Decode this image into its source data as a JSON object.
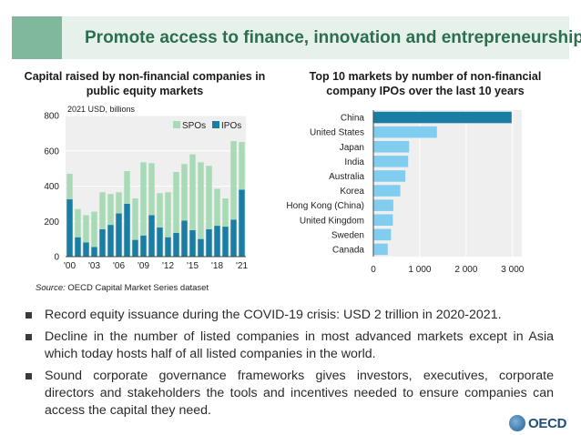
{
  "header": {
    "title": "Promote access to finance, innovation and entrepreneurship"
  },
  "chart_data": [
    {
      "type": "bar",
      "stacked": true,
      "title": "Capital raised by non-financial companies in public equity markets",
      "unit_label": "2021 USD, billions",
      "categories": [
        "2000",
        "2001",
        "2002",
        "2003",
        "2004",
        "2005",
        "2006",
        "2007",
        "2008",
        "2009",
        "2010",
        "2011",
        "2012",
        "2013",
        "2014",
        "2015",
        "2016",
        "2017",
        "2018",
        "2019",
        "2020",
        "2021"
      ],
      "tick_labels": [
        "'00",
        "'03",
        "'06",
        "'09",
        "'12",
        "'15",
        "'18",
        "'21"
      ],
      "tick_years": [
        "2000",
        "2003",
        "2006",
        "2009",
        "2012",
        "2015",
        "2018",
        "2021"
      ],
      "series": [
        {
          "name": "IPOs",
          "color": "#1a7da4",
          "values": [
            325,
            110,
            80,
            55,
            155,
            180,
            245,
            300,
            95,
            120,
            235,
            165,
            110,
            135,
            205,
            150,
            100,
            155,
            175,
            170,
            210,
            380
          ]
        },
        {
          "name": "SPOs",
          "color": "#a8dab6",
          "values": [
            145,
            160,
            155,
            200,
            210,
            175,
            120,
            185,
            235,
            415,
            295,
            195,
            255,
            345,
            320,
            430,
            435,
            360,
            210,
            160,
            445,
            270
          ]
        }
      ],
      "ylim": [
        0,
        800
      ],
      "yticks": [
        0,
        200,
        400,
        600,
        800
      ],
      "legend_position": "top-right"
    },
    {
      "type": "bar",
      "orientation": "horizontal",
      "title": "Top 10 markets by number of non-financial company IPOs over the last 10 years",
      "categories": [
        "China",
        "United States",
        "Japan",
        "India",
        "Australia",
        "Korea",
        "Hong Kong (China)",
        "United Kingdom",
        "Sweden",
        "Canada"
      ],
      "values": [
        2980,
        1370,
        770,
        750,
        690,
        580,
        430,
        420,
        380,
        310
      ],
      "highlight": "China",
      "colors": {
        "highlight": "#1a7da4",
        "default": "#80cdf0"
      },
      "xlim": [
        0,
        3200
      ],
      "xticks": [
        0,
        1000,
        2000,
        3000
      ],
      "xtick_labels": [
        "0",
        "1 000",
        "2 000",
        "3 000"
      ]
    }
  ],
  "source": {
    "label": "Source:",
    "text": " OECD Capital Market Series dataset"
  },
  "bullets": [
    "Record equity issuance during the COVID-19 crisis: USD 2 trillion in 2020-2021.",
    "Decline in the number of listed companies in most advanced markets except in Asia which today hosts half of all listed companies in the world.",
    "Sound corporate governance frameworks gives investors, executives, corporate directors and stakeholders the tools and incentives needed to ensure companies can access the capital they need."
  ],
  "logo": {
    "text": "OECD"
  }
}
